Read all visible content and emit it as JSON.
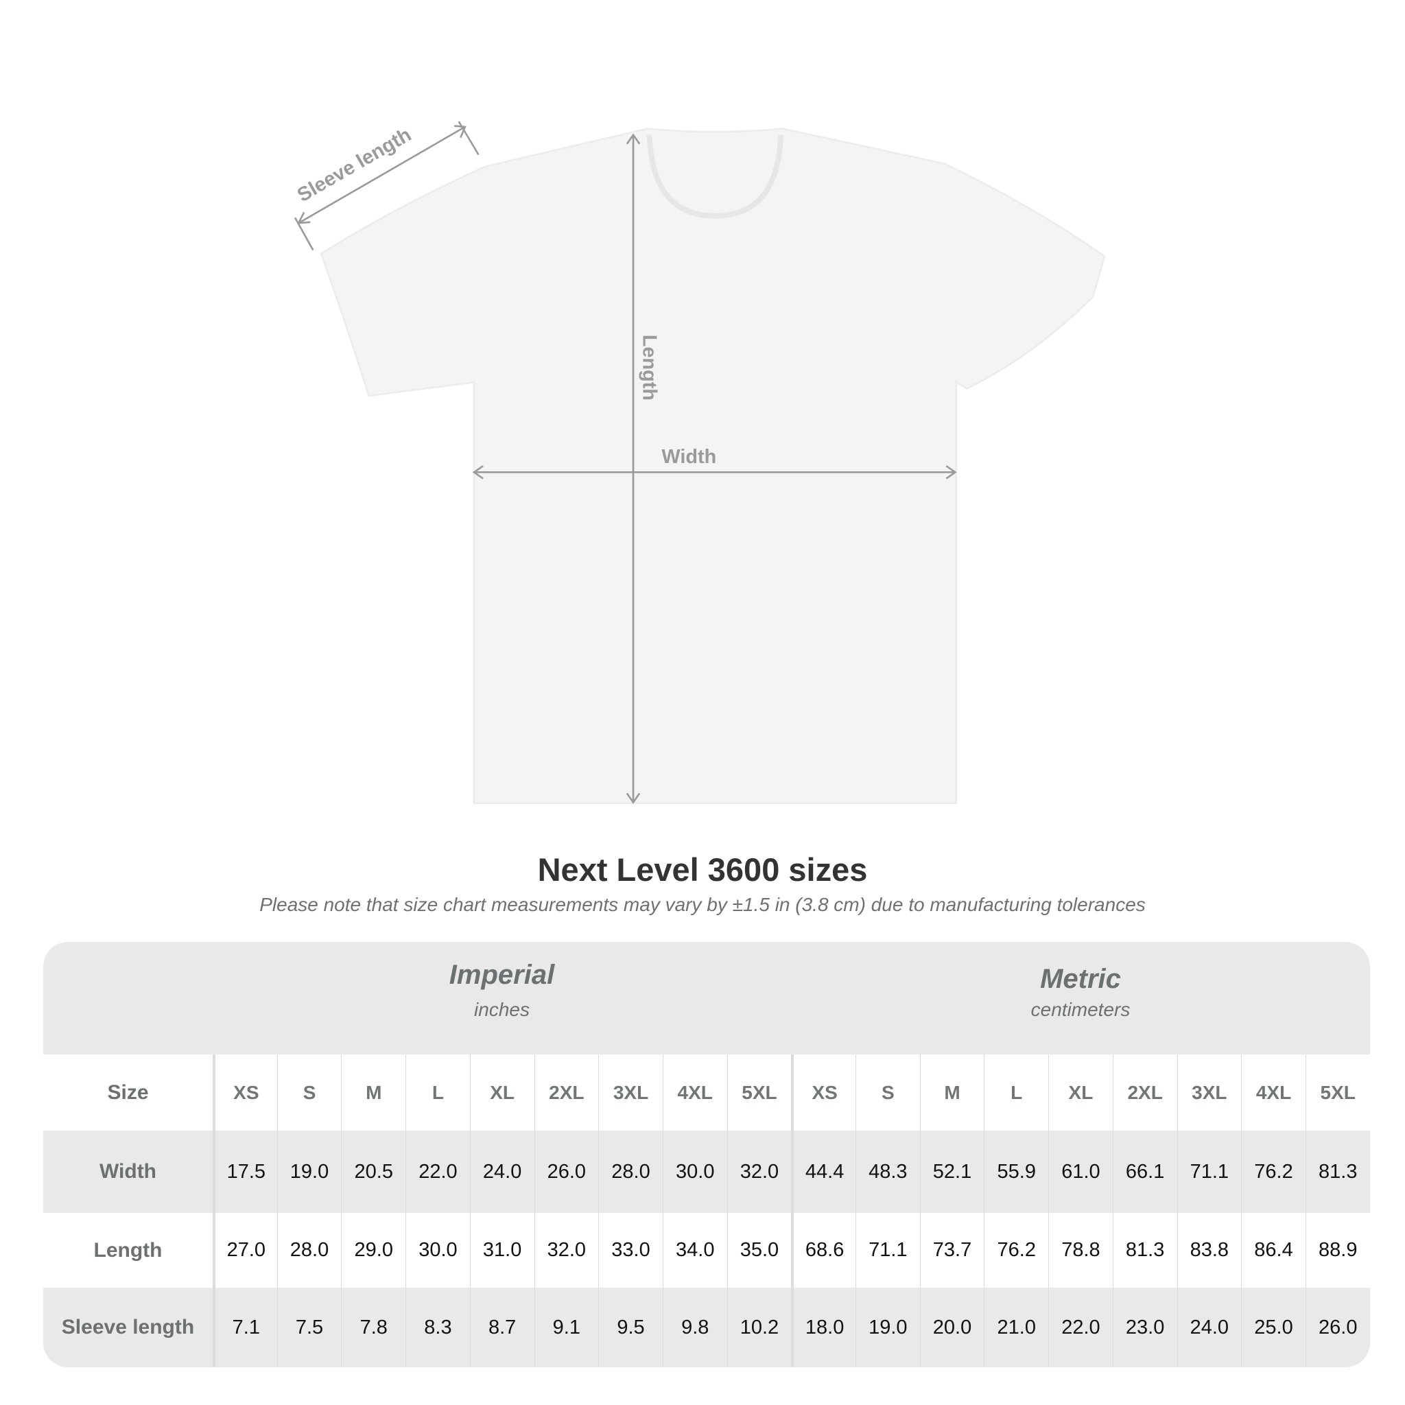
{
  "diagram": {
    "labels": {
      "sleeve": "Sleeve length",
      "length": "Length",
      "width": "Width"
    },
    "shirt_color": "#f4f4f4",
    "arrow_color": "#9a9a9a"
  },
  "title": "Next Level 3600 sizes",
  "subtitle": "Please note that size chart measurements may vary by ±1.5 in (3.8 cm) due to manufacturing tolerances",
  "table": {
    "imperial": {
      "label": "Imperial",
      "unit": "inches"
    },
    "metric": {
      "label": "Metric",
      "unit": "centimeters"
    },
    "size_label": "Size",
    "sizes": [
      "XS",
      "S",
      "M",
      "L",
      "XL",
      "2XL",
      "3XL",
      "4XL",
      "5XL"
    ],
    "rows": [
      {
        "label": "Width",
        "imperial": [
          "17.5",
          "19.0",
          "20.5",
          "22.0",
          "24.0",
          "26.0",
          "28.0",
          "30.0",
          "32.0"
        ],
        "metric": [
          "44.4",
          "48.3",
          "52.1",
          "55.9",
          "61.0",
          "66.1",
          "71.1",
          "76.2",
          "81.3"
        ]
      },
      {
        "label": "Length",
        "imperial": [
          "27.0",
          "28.0",
          "29.0",
          "30.0",
          "31.0",
          "32.0",
          "33.0",
          "34.0",
          "35.0"
        ],
        "metric": [
          "68.6",
          "71.1",
          "73.7",
          "76.2",
          "78.8",
          "81.3",
          "83.8",
          "86.4",
          "88.9"
        ]
      },
      {
        "label": "Sleeve length",
        "imperial": [
          "7.1",
          "7.5",
          "7.8",
          "8.3",
          "8.7",
          "9.1",
          "9.5",
          "9.8",
          "10.2"
        ],
        "metric": [
          "18.0",
          "19.0",
          "20.0",
          "21.0",
          "22.0",
          "23.0",
          "24.0",
          "25.0",
          "26.0"
        ]
      }
    ]
  }
}
